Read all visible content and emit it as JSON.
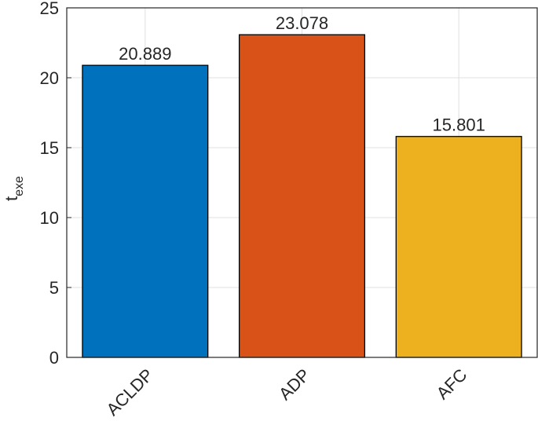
{
  "chart_data": {
    "type": "bar",
    "ylabel": {
      "text": "t",
      "subscript": "exe"
    },
    "categories": [
      "ACLDP",
      "ADP",
      "AFC"
    ],
    "values": [
      20.889,
      23.078,
      15.801
    ],
    "colors": [
      "#0072bd",
      "#d95319",
      "#edb120"
    ],
    "ylim": [
      0,
      25
    ],
    "yticks": [
      0,
      5,
      10,
      15,
      20,
      25
    ],
    "grid": true
  }
}
